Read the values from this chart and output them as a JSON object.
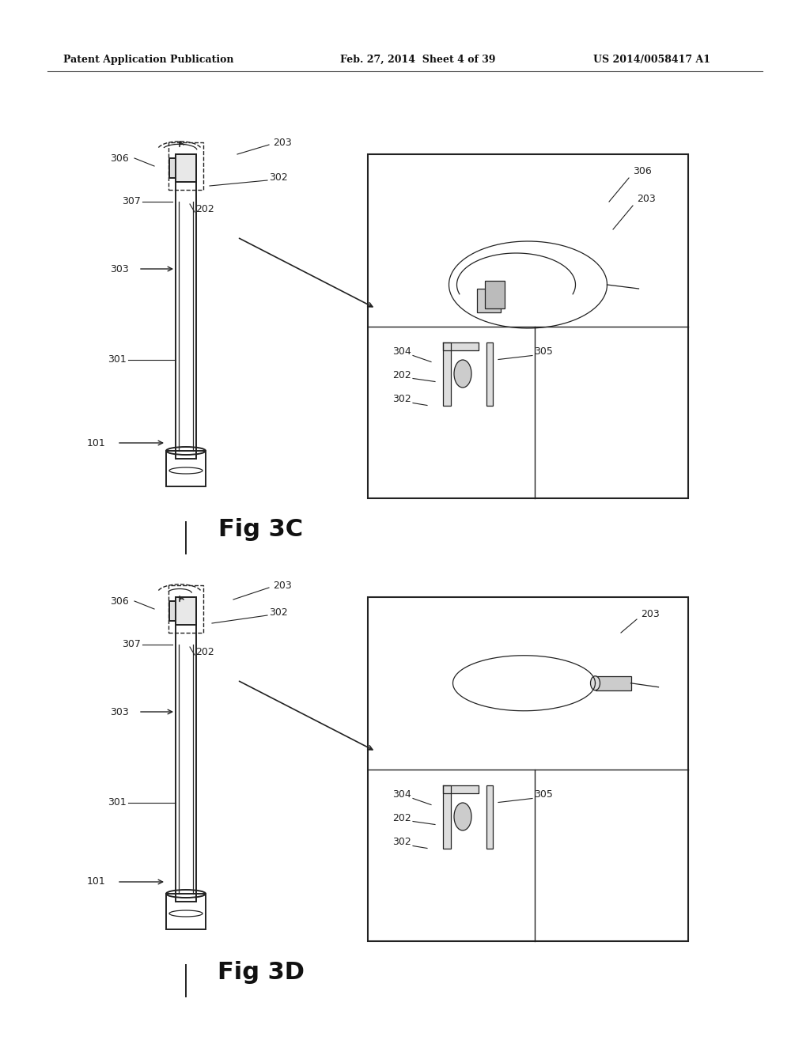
{
  "background_color": "#ffffff",
  "header_left": "Patent Application Publication",
  "header_center": "Feb. 27, 2014  Sheet 4 of 39",
  "header_right": "US 2014/0058417 A1",
  "fig3c_label": "Fig 3C",
  "fig3d_label": "Fig 3D",
  "line_color": "#222222",
  "label_color": "#333333"
}
